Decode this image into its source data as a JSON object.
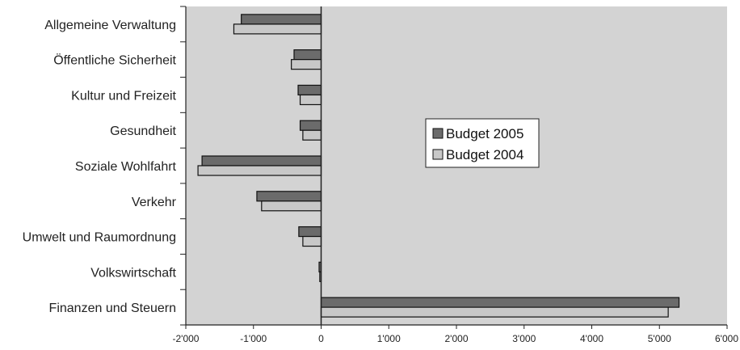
{
  "chart_data": {
    "type": "bar",
    "orientation": "horizontal",
    "categories": [
      "Allgemeine Verwaltung",
      "Öffentliche Sicherheit",
      "Kultur und Freizeit",
      "Gesundheit",
      "Soziale Wohlfahrt",
      "Verkehr",
      "Umwelt und Raumordnung",
      "Volkswirtschaft",
      "Finanzen und Steuern"
    ],
    "series": [
      {
        "name": "Budget 2005",
        "color": "#6b6b6b",
        "values": [
          -1180,
          -400,
          -340,
          -310,
          -1760,
          -950,
          -330,
          -30,
          5290
        ]
      },
      {
        "name": "Budget 2004",
        "color": "#c8c8c8",
        "values": [
          -1290,
          -440,
          -310,
          -270,
          -1820,
          -880,
          -270,
          -20,
          5130
        ]
      }
    ],
    "xlim": [
      -2000,
      6000
    ],
    "x_ticks": [
      -2000,
      -1000,
      0,
      1000,
      2000,
      3000,
      4000,
      5000,
      6000
    ],
    "x_tick_labels": [
      "-2'000",
      "-1'000",
      "0",
      "1'000",
      "2'000",
      "3'000",
      "4'000",
      "5'000",
      "6'000"
    ],
    "title": "",
    "xlabel": "",
    "ylabel": "",
    "grid": false,
    "legend_position": "center",
    "plot_background": "#d3d3d3"
  }
}
